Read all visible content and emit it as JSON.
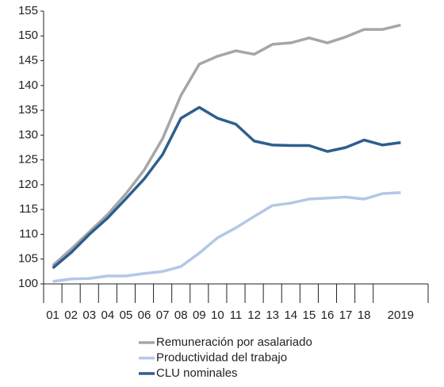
{
  "chart_data": {
    "type": "line",
    "categories": [
      "01",
      "02",
      "03",
      "04",
      "05",
      "06",
      "07",
      "08",
      "09",
      "10",
      "11",
      "12",
      "13",
      "14",
      "15",
      "16",
      "17",
      "18",
      null,
      "2019",
      null
    ],
    "series": [
      {
        "name": "Remuneración por asalariado",
        "color": "#a6a6a6",
        "values": [
          103.7,
          107,
          110.5,
          114,
          118.2,
          123,
          129.3,
          138,
          144.3,
          145.9,
          147,
          146.3,
          148.3,
          148.6,
          149.6,
          148.6,
          149.8,
          151.3,
          151.3,
          152.2,
          null
        ]
      },
      {
        "name": "Productividad del trabajo",
        "color": "#b4c7e7",
        "values": [
          100.5,
          101,
          101.1,
          101.6,
          101.6,
          102.1,
          102.5,
          103.5,
          106.2,
          109.3,
          111.3,
          113.6,
          115.8,
          116.3,
          117.1,
          117.3,
          117.5,
          117.1,
          118.2,
          118.4,
          null
        ]
      },
      {
        "name": "CLU nominales",
        "color": "#2e5e8e",
        "values": [
          103.2,
          106.3,
          110,
          113.3,
          117.2,
          121.2,
          126.1,
          133.4,
          135.6,
          133.4,
          132.2,
          128.8,
          128,
          127.9,
          127.9,
          126.7,
          127.5,
          129,
          128,
          128.5,
          null
        ]
      }
    ],
    "ylim": [
      100,
      155
    ],
    "yticks": [
      100,
      105,
      110,
      115,
      120,
      125,
      130,
      135,
      140,
      145,
      150,
      155
    ]
  }
}
